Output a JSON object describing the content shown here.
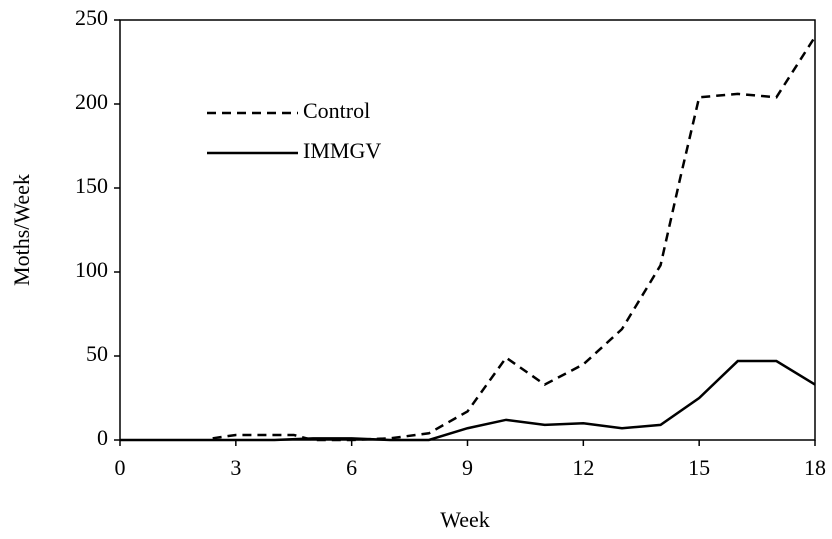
{
  "chart_data": {
    "type": "line",
    "x_label": "Week",
    "y_label": "Moths/Week",
    "xlim": [
      0,
      18
    ],
    "xticks": [
      0,
      3,
      6,
      9,
      12,
      15,
      18
    ],
    "ylim": [
      0,
      250
    ],
    "yticks": [
      0,
      50,
      100,
      150,
      200,
      250
    ],
    "legend": "upper left",
    "series": [
      {
        "name": "Control",
        "color": "#000000",
        "dash": true,
        "x": [
          2.4,
          3,
          4,
          4.5,
          5,
          6,
          7,
          8,
          9,
          10,
          11,
          12,
          13,
          14,
          14.5,
          15,
          16,
          17,
          18
        ],
        "values": [
          1,
          3,
          3,
          3,
          0,
          0,
          1,
          4,
          17,
          49,
          33,
          45,
          66,
          104,
          155,
          204,
          206,
          204,
          240
        ]
      },
      {
        "name": "IMMGV",
        "color": "#000000",
        "dash": false,
        "x": [
          0,
          1,
          2,
          3,
          4,
          5,
          6,
          7,
          8,
          9,
          10,
          11,
          12,
          13,
          14,
          15,
          16,
          17,
          18
        ],
        "values": [
          0,
          0,
          0,
          0,
          0,
          1,
          1,
          0,
          0,
          7,
          12,
          9,
          10,
          7,
          9,
          25,
          47,
          47,
          33
        ]
      }
    ]
  }
}
